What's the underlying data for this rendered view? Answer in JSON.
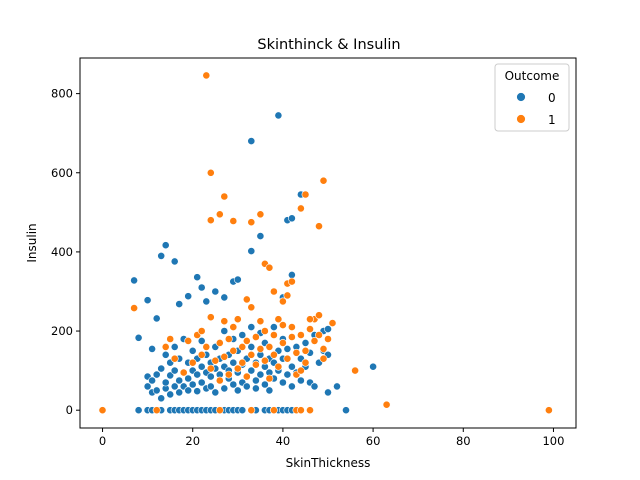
{
  "chart_data": {
    "type": "scatter",
    "title": "Skinthinck & Insulin",
    "xlabel": "SkinThickness",
    "ylabel": "Insulin",
    "xlim": [
      -5,
      105
    ],
    "ylim": [
      -45,
      890
    ],
    "xticks": [
      0,
      20,
      40,
      60,
      80,
      100
    ],
    "yticks": [
      0,
      200,
      400,
      600,
      800
    ],
    "grid": false,
    "legend": {
      "title": "Outcome",
      "placement": "top-right"
    },
    "series": [
      {
        "name": "0",
        "color": "#1f77b4",
        "points": [
          [
            7,
            328
          ],
          [
            8,
            183
          ],
          [
            10,
            278
          ],
          [
            11,
            155
          ],
          [
            12,
            232
          ],
          [
            13,
            390
          ],
          [
            14,
            417
          ],
          [
            16,
            376
          ],
          [
            17,
            268
          ],
          [
            19,
            288
          ],
          [
            21,
            336
          ],
          [
            22,
            310
          ],
          [
            23,
            275
          ],
          [
            25,
            300
          ],
          [
            27,
            285
          ],
          [
            29,
            325
          ],
          [
            30,
            330
          ],
          [
            33,
            680
          ],
          [
            33,
            402
          ],
          [
            35,
            440
          ],
          [
            39,
            745
          ],
          [
            40,
            285
          ],
          [
            41,
            480
          ],
          [
            42,
            485
          ],
          [
            42,
            342
          ],
          [
            44,
            545
          ],
          [
            49,
            200
          ],
          [
            50,
            205
          ],
          [
            52,
            60
          ],
          [
            60,
            110
          ],
          [
            10,
            60
          ],
          [
            10,
            85
          ],
          [
            11,
            75
          ],
          [
            11,
            45
          ],
          [
            12,
            50
          ],
          [
            12,
            90
          ],
          [
            13,
            105
          ],
          [
            13,
            30
          ],
          [
            14,
            55
          ],
          [
            14,
            70
          ],
          [
            14,
            140
          ],
          [
            15,
            88
          ],
          [
            15,
            120
          ],
          [
            15,
            40
          ],
          [
            16,
            60
          ],
          [
            16,
            100
          ],
          [
            16,
            160
          ],
          [
            17,
            75
          ],
          [
            17,
            45
          ],
          [
            17,
            130
          ],
          [
            18,
            95
          ],
          [
            18,
            60
          ],
          [
            18,
            180
          ],
          [
            19,
            120
          ],
          [
            19,
            50
          ],
          [
            19,
            80
          ],
          [
            20,
            100
          ],
          [
            20,
            150
          ],
          [
            20,
            65
          ],
          [
            21,
            90
          ],
          [
            21,
            130
          ],
          [
            21,
            48
          ],
          [
            22,
            70
          ],
          [
            22,
            110
          ],
          [
            22,
            175
          ],
          [
            23,
            55
          ],
          [
            23,
            95
          ],
          [
            23,
            140
          ],
          [
            24,
            85
          ],
          [
            24,
            120
          ],
          [
            24,
            60
          ],
          [
            25,
            105
          ],
          [
            25,
            45
          ],
          [
            25,
            160
          ],
          [
            26,
            75
          ],
          [
            26,
            130
          ],
          [
            26,
            90
          ],
          [
            27,
            110
          ],
          [
            27,
            55
          ],
          [
            27,
            200
          ],
          [
            28,
            80
          ],
          [
            28,
            140
          ],
          [
            28,
            100
          ],
          [
            29,
            65
          ],
          [
            29,
            120
          ],
          [
            29,
            180
          ],
          [
            30,
            95
          ],
          [
            30,
            50
          ],
          [
            30,
            150
          ],
          [
            31,
            115
          ],
          [
            31,
            70
          ],
          [
            31,
            190
          ],
          [
            32,
            85
          ],
          [
            32,
            130
          ],
          [
            32,
            60
          ],
          [
            33,
            100
          ],
          [
            33,
            160
          ],
          [
            33,
            210
          ],
          [
            34,
            75
          ],
          [
            34,
            120
          ],
          [
            34,
            55
          ],
          [
            35,
            140
          ],
          [
            35,
            90
          ],
          [
            35,
            195
          ],
          [
            36,
            110
          ],
          [
            36,
            65
          ],
          [
            36,
            170
          ],
          [
            37,
            95
          ],
          [
            37,
            130
          ],
          [
            37,
            50
          ],
          [
            38,
            120
          ],
          [
            38,
            80
          ],
          [
            38,
            210
          ],
          [
            39,
            100
          ],
          [
            39,
            150
          ],
          [
            40,
            70
          ],
          [
            40,
            130
          ],
          [
            40,
            180
          ],
          [
            41,
            90
          ],
          [
            41,
            155
          ],
          [
            42,
            60
          ],
          [
            42,
            110
          ],
          [
            43,
            160
          ],
          [
            43,
            95
          ],
          [
            44,
            130
          ],
          [
            44,
            75
          ],
          [
            45,
            170
          ],
          [
            45,
            110
          ],
          [
            46,
            145
          ],
          [
            46,
            70
          ],
          [
            47,
            60
          ],
          [
            47,
            190
          ],
          [
            48,
            120
          ],
          [
            49,
            150
          ],
          [
            50,
            45
          ],
          [
            50,
            140
          ],
          [
            8,
            0
          ],
          [
            10,
            0
          ],
          [
            11,
            0
          ],
          [
            12,
            0
          ],
          [
            13,
            0
          ],
          [
            15,
            0
          ],
          [
            16,
            0
          ],
          [
            17,
            0
          ],
          [
            18,
            0
          ],
          [
            19,
            0
          ],
          [
            20,
            0
          ],
          [
            21,
            0
          ],
          [
            22,
            0
          ],
          [
            23,
            0
          ],
          [
            24,
            0
          ],
          [
            25,
            0
          ],
          [
            27,
            0
          ],
          [
            28,
            0
          ],
          [
            29,
            0
          ],
          [
            30,
            0
          ],
          [
            31,
            0
          ],
          [
            33,
            0
          ],
          [
            34,
            0
          ],
          [
            36,
            0
          ],
          [
            37,
            0
          ],
          [
            38,
            0
          ],
          [
            39,
            0
          ],
          [
            40,
            0
          ],
          [
            41,
            0
          ],
          [
            42,
            0
          ],
          [
            44,
            0
          ],
          [
            46,
            0
          ],
          [
            54,
            0
          ]
        ]
      },
      {
        "name": "1",
        "color": "#ff7f0e",
        "points": [
          [
            0,
            0
          ],
          [
            7,
            258
          ],
          [
            23,
            846
          ],
          [
            24,
            600
          ],
          [
            24,
            480
          ],
          [
            26,
            495
          ],
          [
            27,
            540
          ],
          [
            29,
            478
          ],
          [
            32,
            280
          ],
          [
            33,
            475
          ],
          [
            35,
            495
          ],
          [
            36,
            370
          ],
          [
            37,
            360
          ],
          [
            38,
            300
          ],
          [
            40,
            275
          ],
          [
            41,
            320
          ],
          [
            41,
            290
          ],
          [
            42,
            325
          ],
          [
            44,
            510
          ],
          [
            45,
            545
          ],
          [
            47,
            230
          ],
          [
            48,
            465
          ],
          [
            49,
            580
          ],
          [
            51,
            220
          ],
          [
            56,
            100
          ],
          [
            63,
            14
          ],
          [
            99,
            0
          ],
          [
            12,
            0
          ],
          [
            14,
            160
          ],
          [
            15,
            180
          ],
          [
            16,
            130
          ],
          [
            18,
            95
          ],
          [
            19,
            175
          ],
          [
            20,
            120
          ],
          [
            21,
            190
          ],
          [
            22,
            200
          ],
          [
            22,
            140
          ],
          [
            23,
            160
          ],
          [
            24,
            105
          ],
          [
            24,
            235
          ],
          [
            25,
            125
          ],
          [
            26,
            170
          ],
          [
            26,
            75
          ],
          [
            27,
            135
          ],
          [
            27,
            225
          ],
          [
            28,
            180
          ],
          [
            28,
            90
          ],
          [
            29,
            150
          ],
          [
            29,
            210
          ],
          [
            30,
            105
          ],
          [
            30,
            230
          ],
          [
            31,
            160
          ],
          [
            31,
            120
          ],
          [
            32,
            175
          ],
          [
            32,
            85
          ],
          [
            33,
            140
          ],
          [
            33,
            260
          ],
          [
            34,
            185
          ],
          [
            34,
            115
          ],
          [
            35,
            225
          ],
          [
            35,
            155
          ],
          [
            36,
            125
          ],
          [
            36,
            200
          ],
          [
            37,
            160
          ],
          [
            37,
            80
          ],
          [
            38,
            190
          ],
          [
            38,
            140
          ],
          [
            39,
            230
          ],
          [
            39,
            110
          ],
          [
            40,
            170
          ],
          [
            40,
            215
          ],
          [
            41,
            130
          ],
          [
            42,
            210
          ],
          [
            42,
            185
          ],
          [
            43,
            145
          ],
          [
            43,
            90
          ],
          [
            44,
            190
          ],
          [
            44,
            100
          ],
          [
            45,
            150
          ],
          [
            45,
            120
          ],
          [
            46,
            205
          ],
          [
            46,
            230
          ],
          [
            47,
            175
          ],
          [
            48,
            190
          ],
          [
            48,
            240
          ],
          [
            49,
            155
          ],
          [
            49,
            130
          ],
          [
            50,
            180
          ],
          [
            26,
            0
          ],
          [
            33,
            0
          ],
          [
            38,
            0
          ],
          [
            43,
            0
          ],
          [
            44,
            0
          ],
          [
            46,
            0
          ]
        ]
      }
    ]
  }
}
